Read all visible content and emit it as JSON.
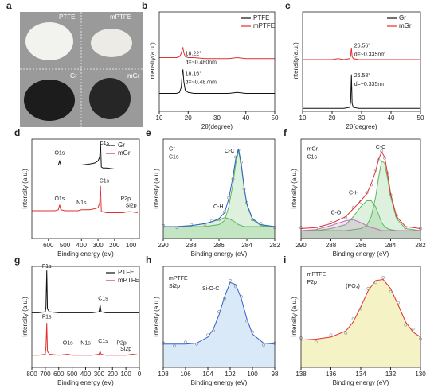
{
  "photo": {
    "panel": "a",
    "labels": [
      "PTFE",
      "mPTFE",
      "Gr",
      "mGr"
    ]
  },
  "chart_data": [
    {
      "type": "line",
      "panel": "b",
      "xlabel": "2θ(degree)",
      "ylabel": "Intensity(a.u.)",
      "xlim": [
        10,
        50
      ],
      "xticks": [
        10,
        20,
        30,
        40,
        50
      ],
      "ylim": [
        0,
        100
      ],
      "legend": "upper right",
      "x": [
        10,
        14,
        16,
        17,
        17.6,
        18,
        18.2,
        18.5,
        19,
        20,
        22,
        26,
        30,
        34,
        37,
        40,
        45,
        50
      ],
      "series": [
        {
          "name": "PTFE",
          "color": "#111111",
          "style": "line",
          "values": [
            18,
            18,
            18,
            19,
            24,
            40,
            42,
            30,
            21,
            19,
            18,
            18,
            18,
            18,
            19,
            18,
            18,
            18
          ]
        },
        {
          "name": "mPTFE",
          "color": "#e03030",
          "style": "line",
          "values": [
            54,
            54,
            54,
            55,
            58,
            63,
            64,
            59,
            55,
            54,
            54,
            53,
            53,
            53,
            54,
            53,
            53,
            53
          ]
        }
      ],
      "annotations": [
        "18.22°",
        "d=~0.480nm",
        "18.16°",
        "d=~0.487nm"
      ]
    },
    {
      "type": "line",
      "panel": "c",
      "xlabel": "2θ(degree)",
      "ylabel": "Intensity(a.u.)",
      "xlim": [
        10,
        50
      ],
      "xticks": [
        10,
        20,
        30,
        40,
        50
      ],
      "ylim": [
        0,
        100
      ],
      "legend": "upper right",
      "x": [
        10,
        15,
        20,
        22,
        24,
        26,
        26.3,
        26.56,
        26.8,
        27.2,
        29,
        32,
        36,
        40,
        44,
        50
      ],
      "series": [
        {
          "name": "Gr",
          "color": "#111111",
          "style": "line",
          "values": [
            3,
            3,
            3,
            3,
            3,
            4,
            10,
            37,
            8,
            4,
            3,
            3,
            3,
            3,
            3,
            3
          ]
        },
        {
          "name": "mGr",
          "color": "#e03030",
          "style": "line",
          "values": [
            52,
            52,
            52,
            53,
            52,
            53,
            56,
            64,
            55,
            53,
            52,
            52,
            52,
            52,
            52,
            52
          ]
        }
      ],
      "annotations": [
        "26.56°",
        "d=~0.335nm",
        "26.58°",
        "d=~0.335nm"
      ]
    },
    {
      "type": "line",
      "panel": "d",
      "xlabel": "Binding energy (eV)",
      "ylabel": "Intensity (a.u.)",
      "xlim": [
        700,
        50
      ],
      "xticks": [
        600,
        500,
        400,
        300,
        200,
        100
      ],
      "ylim": [
        0,
        100
      ],
      "legend": "upper right",
      "x": [
        700,
        650,
        600,
        560,
        540,
        532,
        525,
        500,
        450,
        420,
        400,
        350,
        320,
        300,
        290,
        285,
        280,
        270,
        250,
        200,
        150,
        120,
        100,
        60
      ],
      "series": [
        {
          "name": "Gr",
          "color": "#111111",
          "style": "line",
          "values": [
            74,
            74,
            74,
            74,
            74,
            78,
            74,
            74,
            74,
            74,
            74,
            75,
            76,
            78,
            82,
            98,
            72,
            71,
            71,
            70,
            70,
            70,
            70,
            70
          ]
        },
        {
          "name": "mGr",
          "color": "#e03030",
          "style": "line",
          "values": [
            28,
            28,
            28,
            28,
            29,
            34,
            29,
            28,
            28,
            28,
            29,
            29,
            30,
            31,
            36,
            53,
            27,
            27,
            26,
            26,
            26,
            27,
            27,
            26
          ]
        }
      ],
      "annotations": [
        "O1s",
        "C1s",
        "O1s",
        "N1s",
        "C1s",
        "P2p",
        "Si2p"
      ]
    },
    {
      "type": "line",
      "panel": "e",
      "xlabel": "Binding energy (eV)",
      "ylabel": "Intensity (a.u.)",
      "xlim": [
        290,
        282
      ],
      "xticks": [
        290,
        288,
        286,
        284,
        282
      ],
      "ylim": [
        0,
        100
      ],
      "x": [
        290,
        289,
        288,
        287,
        286.5,
        286,
        285.6,
        285.3,
        285,
        284.8,
        284.6,
        284.4,
        284.2,
        284,
        283.6,
        283,
        282
      ],
      "series": [
        {
          "color": "#5cb85c",
          "style": "area",
          "values": [
            12,
            12,
            12,
            12,
            13,
            14,
            18,
            32,
            55,
            75,
            88,
            73,
            51,
            34,
            19,
            13,
            12
          ]
        },
        {
          "color": "#5cb85c",
          "style": "area",
          "values": [
            12,
            12,
            13,
            15,
            17,
            19,
            21,
            20,
            18,
            16,
            14,
            13,
            12,
            12,
            12,
            12,
            12
          ]
        },
        {
          "color": "#888888",
          "style": "markers",
          "values": [
            13,
            11,
            14,
            14,
            18,
            19,
            27,
            41,
            60,
            82,
            89,
            77,
            50,
            36,
            19,
            15,
            11
          ]
        },
        {
          "color": "#3060d0",
          "style": "line",
          "values": [
            12,
            12,
            13,
            15,
            17,
            20,
            26,
            40,
            62,
            80,
            90,
            75,
            52,
            35,
            20,
            14,
            12
          ]
        }
      ],
      "annotations": [
        "Gr",
        "C1s",
        "C-C",
        "C-H"
      ]
    },
    {
      "type": "line",
      "panel": "f",
      "xlabel": "Binding energy (eV)",
      "ylabel": "Intensity (a.u.)",
      "xlim": [
        290,
        282
      ],
      "xticks": [
        290,
        288,
        286,
        284,
        282
      ],
      "ylim": [
        0,
        100
      ],
      "x": [
        290,
        289,
        288,
        287,
        286.5,
        286,
        285.6,
        285.3,
        285,
        284.8,
        284.6,
        284.4,
        284.2,
        284,
        283.6,
        283,
        282
      ],
      "series": [
        {
          "color": "#5cb85c",
          "style": "area",
          "values": [
            8,
            8,
            8,
            8,
            9,
            10,
            13,
            22,
            42,
            62,
            78,
            76,
            60,
            42,
            20,
            10,
            8
          ]
        },
        {
          "color": "#5cb85c",
          "style": "area",
          "values": [
            8,
            8,
            10,
            14,
            22,
            32,
            38,
            38,
            32,
            24,
            16,
            12,
            10,
            9,
            8,
            8,
            8
          ]
        },
        {
          "color": "#c070c0",
          "style": "area",
          "values": [
            8,
            9,
            13,
            18,
            19,
            16,
            13,
            11,
            10,
            9,
            8,
            8,
            8,
            8,
            8,
            8,
            8
          ]
        },
        {
          "color": "#888888",
          "style": "markers",
          "values": [
            11,
            10,
            16,
            21,
            31,
            37,
            46,
            54,
            69,
            79,
            88,
            81,
            66,
            44,
            23,
            11,
            10
          ]
        },
        {
          "color": "#e03030",
          "style": "line",
          "values": [
            10,
            11,
            15,
            22,
            30,
            38,
            45,
            55,
            68,
            80,
            87,
            82,
            65,
            45,
            22,
            12,
            10
          ]
        }
      ],
      "annotations": [
        "mGr",
        "C1s",
        "C-C",
        "C-H",
        "C-O"
      ]
    },
    {
      "type": "line",
      "panel": "g",
      "xlabel": "Binding energy (eV)",
      "ylabel": "Intensity (a.u.)",
      "xlim": [
        800,
        0
      ],
      "xticks": [
        800,
        700,
        600,
        500,
        400,
        300,
        200,
        100,
        0
      ],
      "ylim": [
        0,
        100
      ],
      "legend": "upper right",
      "x": [
        800,
        750,
        700,
        695,
        689,
        684,
        670,
        600,
        532,
        500,
        420,
        400,
        350,
        300,
        292,
        285,
        250,
        200,
        150,
        100,
        50,
        0
      ],
      "series": [
        {
          "name": "PTFE",
          "color": "#111111",
          "style": "line",
          "values": [
            54,
            54,
            55,
            60,
            96,
            58,
            55,
            54,
            54,
            54,
            54,
            54,
            54,
            55,
            62,
            55,
            54,
            54,
            54,
            54,
            54,
            54
          ]
        },
        {
          "name": "mPTFE",
          "color": "#e03030",
          "style": "line",
          "values": [
            12,
            12,
            13,
            20,
            44,
            16,
            13,
            12,
            13,
            12,
            12,
            12,
            12,
            13,
            16,
            13,
            12,
            12,
            12,
            12,
            13,
            12
          ]
        }
      ],
      "annotations": [
        "F1s",
        "C1s",
        "F1s",
        "O1s",
        "N1s",
        "C1s",
        "P2p",
        "Si2p"
      ]
    },
    {
      "type": "line",
      "panel": "h",
      "xlabel": "Binding energy (eV)",
      "ylabel": "Intensity (a.u.)",
      "xlim": [
        108,
        98
      ],
      "xticks": [
        108,
        106,
        104,
        102,
        100,
        98
      ],
      "ylim": [
        0,
        100
      ],
      "x": [
        108,
        107,
        106,
        105,
        104,
        103.5,
        103,
        102.5,
        102,
        101.5,
        101,
        100.5,
        100,
        99,
        98
      ],
      "series": [
        {
          "color": "#3060d0",
          "fill": "#cfe3f5",
          "style": "area",
          "values": [
            23,
            23,
            23,
            24,
            30,
            38,
            52,
            70,
            84,
            82,
            68,
            48,
            33,
            24,
            23
          ]
        },
        {
          "color": "#888888",
          "style": "markers",
          "values": [
            24,
            21,
            25,
            23,
            32,
            36,
            55,
            68,
            86,
            80,
            70,
            46,
            35,
            22,
            24
          ]
        }
      ],
      "annotations": [
        "mPTFE",
        "Si2p",
        "Si-O-C"
      ]
    },
    {
      "type": "line",
      "panel": "i",
      "xlabel": "Binding energy (eV)",
      "ylabel": "Intensity (a.u.)",
      "xlim": [
        138,
        130
      ],
      "xticks": [
        138,
        136,
        134,
        132,
        130
      ],
      "ylim": [
        0,
        100
      ],
      "x": [
        138,
        137,
        136,
        135,
        134.5,
        134,
        133.5,
        133,
        132.5,
        132,
        131.5,
        131,
        130.5,
        130
      ],
      "series": [
        {
          "color": "#e03030",
          "fill": "#f3f0b8",
          "style": "area",
          "values": [
            27,
            28,
            30,
            36,
            45,
            60,
            76,
            86,
            87,
            78,
            62,
            45,
            35,
            30
          ]
        },
        {
          "color": "#888888",
          "style": "markers",
          "values": [
            29,
            25,
            32,
            34,
            48,
            58,
            78,
            84,
            89,
            75,
            64,
            42,
            38,
            28
          ]
        }
      ],
      "annotations": [
        "mPTFE",
        "P2p",
        "(PO₄)⁻"
      ]
    }
  ]
}
